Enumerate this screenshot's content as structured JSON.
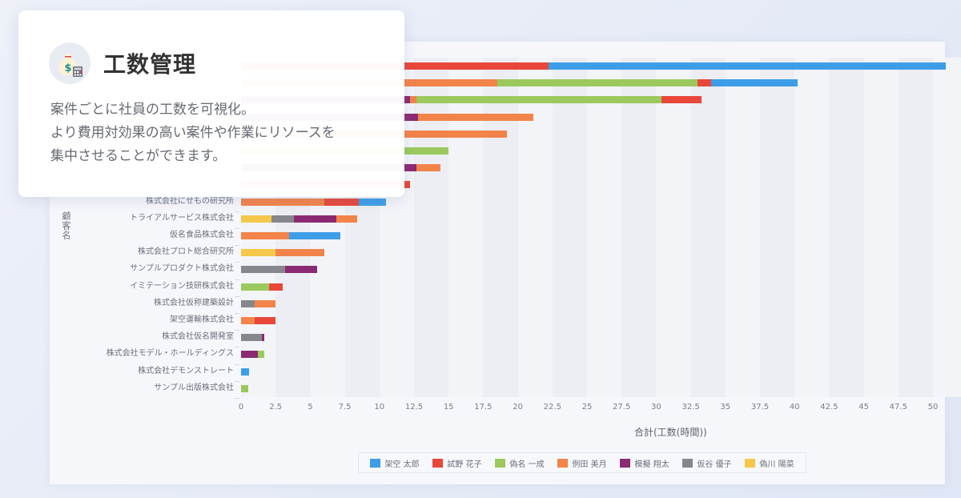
{
  "card": {
    "title": "工数管理",
    "icon": "money-bag-calculator-icon",
    "description_lines": [
      "案件ごとに社員の工数を可視化。",
      "より費用対効果の高い案件や作業にリソースを",
      "集中させることができます。"
    ]
  },
  "chart": {
    "x_title": "合計(工数(時間))",
    "y_title": "顧客名",
    "x_ticks": [
      "0",
      "2.5",
      "5",
      "7.5",
      "10",
      "12.5",
      "15",
      "17.5",
      "20",
      "22.5",
      "25",
      "27.5",
      "30",
      "32.5",
      "35",
      "37.5",
      "40",
      "42.5",
      "45",
      "47.5",
      "50"
    ],
    "legend": [
      {
        "name": "架空 太郎",
        "color": "#3d9ee8"
      },
      {
        "name": "試野 花子",
        "color": "#e8473a"
      },
      {
        "name": "偽名 一成",
        "color": "#9cc95d"
      },
      {
        "name": "例田 美月",
        "color": "#f2844a"
      },
      {
        "name": "模擬 翔太",
        "color": "#8b2a72"
      },
      {
        "name": "仮谷 優子",
        "color": "#85878d"
      },
      {
        "name": "偽川 陽菜",
        "color": "#f5c84b"
      }
    ]
  },
  "chart_data": {
    "type": "bar",
    "orientation": "horizontal",
    "stacked": true,
    "title": "",
    "xlabel": "合計(工数(時間))",
    "ylabel": "顧客名",
    "xlim": [
      0,
      51
    ],
    "grid": true,
    "legend_position": "bottom",
    "categories": [
      "",
      "",
      "",
      "",
      "",
      "",
      "",
      "",
      "株式会社にせもの研究所",
      "トライアルサービス株式会社",
      "仮名食品株式会社",
      "株式会社プロト総合研究所",
      "サンプルプロダクト株式会社",
      "イミテーション技研株式会社",
      "株式会社仮称建築設計",
      "架空運輸株式会社",
      "株式会社仮名開発室",
      "株式会社モデル・ホールディングス",
      "株式会社デモンストレート",
      "サンプル出版株式会社"
    ],
    "series": [
      {
        "name": "偽川 陽菜",
        "values": [
          0,
          0,
          0,
          0,
          0,
          0,
          0,
          0,
          0,
          2.2,
          0,
          2.5,
          0,
          0,
          0,
          0,
          0,
          0,
          0,
          0
        ]
      },
      {
        "name": "仮谷 優子",
        "values": [
          0,
          0,
          0,
          0,
          0,
          0,
          0,
          0,
          0,
          1.6,
          0,
          0,
          3.2,
          0,
          1.0,
          0,
          1.5,
          0,
          0,
          0
        ]
      },
      {
        "name": "模擬 翔太",
        "values": [
          0,
          0,
          12.2,
          12.8,
          0,
          0,
          12.7,
          0,
          0,
          3.1,
          0,
          0,
          2.3,
          0,
          0,
          0,
          0.2,
          1.2,
          0,
          0
        ]
      },
      {
        "name": "例田 美月",
        "values": [
          0,
          18.5,
          0.5,
          8.3,
          19.2,
          0,
          1.7,
          0,
          6.0,
          1.5,
          3.5,
          3.5,
          0,
          0,
          1.5,
          1.0,
          0,
          0,
          0,
          0
        ]
      },
      {
        "name": "偽名 一成",
        "values": [
          0,
          14.5,
          17.7,
          0,
          0,
          15.0,
          0,
          0,
          0,
          0,
          0,
          0,
          0,
          2.0,
          0,
          0,
          0,
          0.5,
          0,
          0.5
        ]
      },
      {
        "name": "試野 花子",
        "values": [
          22.2,
          1.0,
          2.9,
          0,
          0,
          0,
          0,
          12.2,
          2.5,
          0,
          0,
          0,
          0,
          1.0,
          0,
          1.5,
          0,
          0,
          0,
          0
        ]
      },
      {
        "name": "架空 太郎",
        "values": [
          28.7,
          6.2,
          0,
          0,
          0,
          0,
          0,
          0,
          2.0,
          0,
          3.7,
          0,
          0,
          0,
          0,
          0,
          0,
          0,
          0.6,
          0
        ]
      }
    ],
    "rows_segments": [
      [
        [
          "試野 花子",
          22.2
        ],
        [
          "架空 太郎",
          28.7
        ]
      ],
      [
        [
          "例田 美月",
          18.5
        ],
        [
          "偽名 一成",
          14.5
        ],
        [
          "試野 花子",
          1.0
        ],
        [
          "架空 太郎",
          6.2
        ]
      ],
      [
        [
          "模擬 翔太",
          12.2
        ],
        [
          "例田 美月",
          0.5
        ],
        [
          "偽名 一成",
          17.7
        ],
        [
          "試野 花子",
          2.9
        ]
      ],
      [
        [
          "模擬 翔太",
          12.8
        ],
        [
          "例田 美月",
          8.3
        ]
      ],
      [
        [
          "例田 美月",
          19.2
        ]
      ],
      [
        [
          "偽名 一成",
          15.0
        ]
      ],
      [
        [
          "模擬 翔太",
          12.7
        ],
        [
          "例田 美月",
          1.7
        ]
      ],
      [
        [
          "試野 花子",
          12.2
        ]
      ],
      [
        [
          "例田 美月",
          6.0
        ],
        [
          "試野 花子",
          2.5
        ],
        [
          "架空 太郎",
          2.0
        ]
      ],
      [
        [
          "偽川 陽菜",
          2.2
        ],
        [
          "仮谷 優子",
          1.6
        ],
        [
          "模擬 翔太",
          3.1
        ],
        [
          "例田 美月",
          1.5
        ]
      ],
      [
        [
          "例田 美月",
          3.5
        ],
        [
          "架空 太郎",
          3.7
        ]
      ],
      [
        [
          "偽川 陽菜",
          2.5
        ],
        [
          "例田 美月",
          3.5
        ]
      ],
      [
        [
          "仮谷 優子",
          3.2
        ],
        [
          "模擬 翔太",
          2.3
        ]
      ],
      [
        [
          "偽名 一成",
          2.0
        ],
        [
          "試野 花子",
          1.0
        ]
      ],
      [
        [
          "仮谷 優子",
          1.0
        ],
        [
          "例田 美月",
          1.5
        ]
      ],
      [
        [
          "例田 美月",
          1.0
        ],
        [
          "試野 花子",
          1.5
        ]
      ],
      [
        [
          "仮谷 優子",
          1.5
        ],
        [
          "模擬 翔太",
          0.2
        ]
      ],
      [
        [
          "模擬 翔太",
          1.2
        ],
        [
          "偽名 一成",
          0.5
        ]
      ],
      [
        [
          "架空 太郎",
          0.6
        ]
      ],
      [
        [
          "偽名 一成",
          0.5
        ]
      ]
    ]
  }
}
